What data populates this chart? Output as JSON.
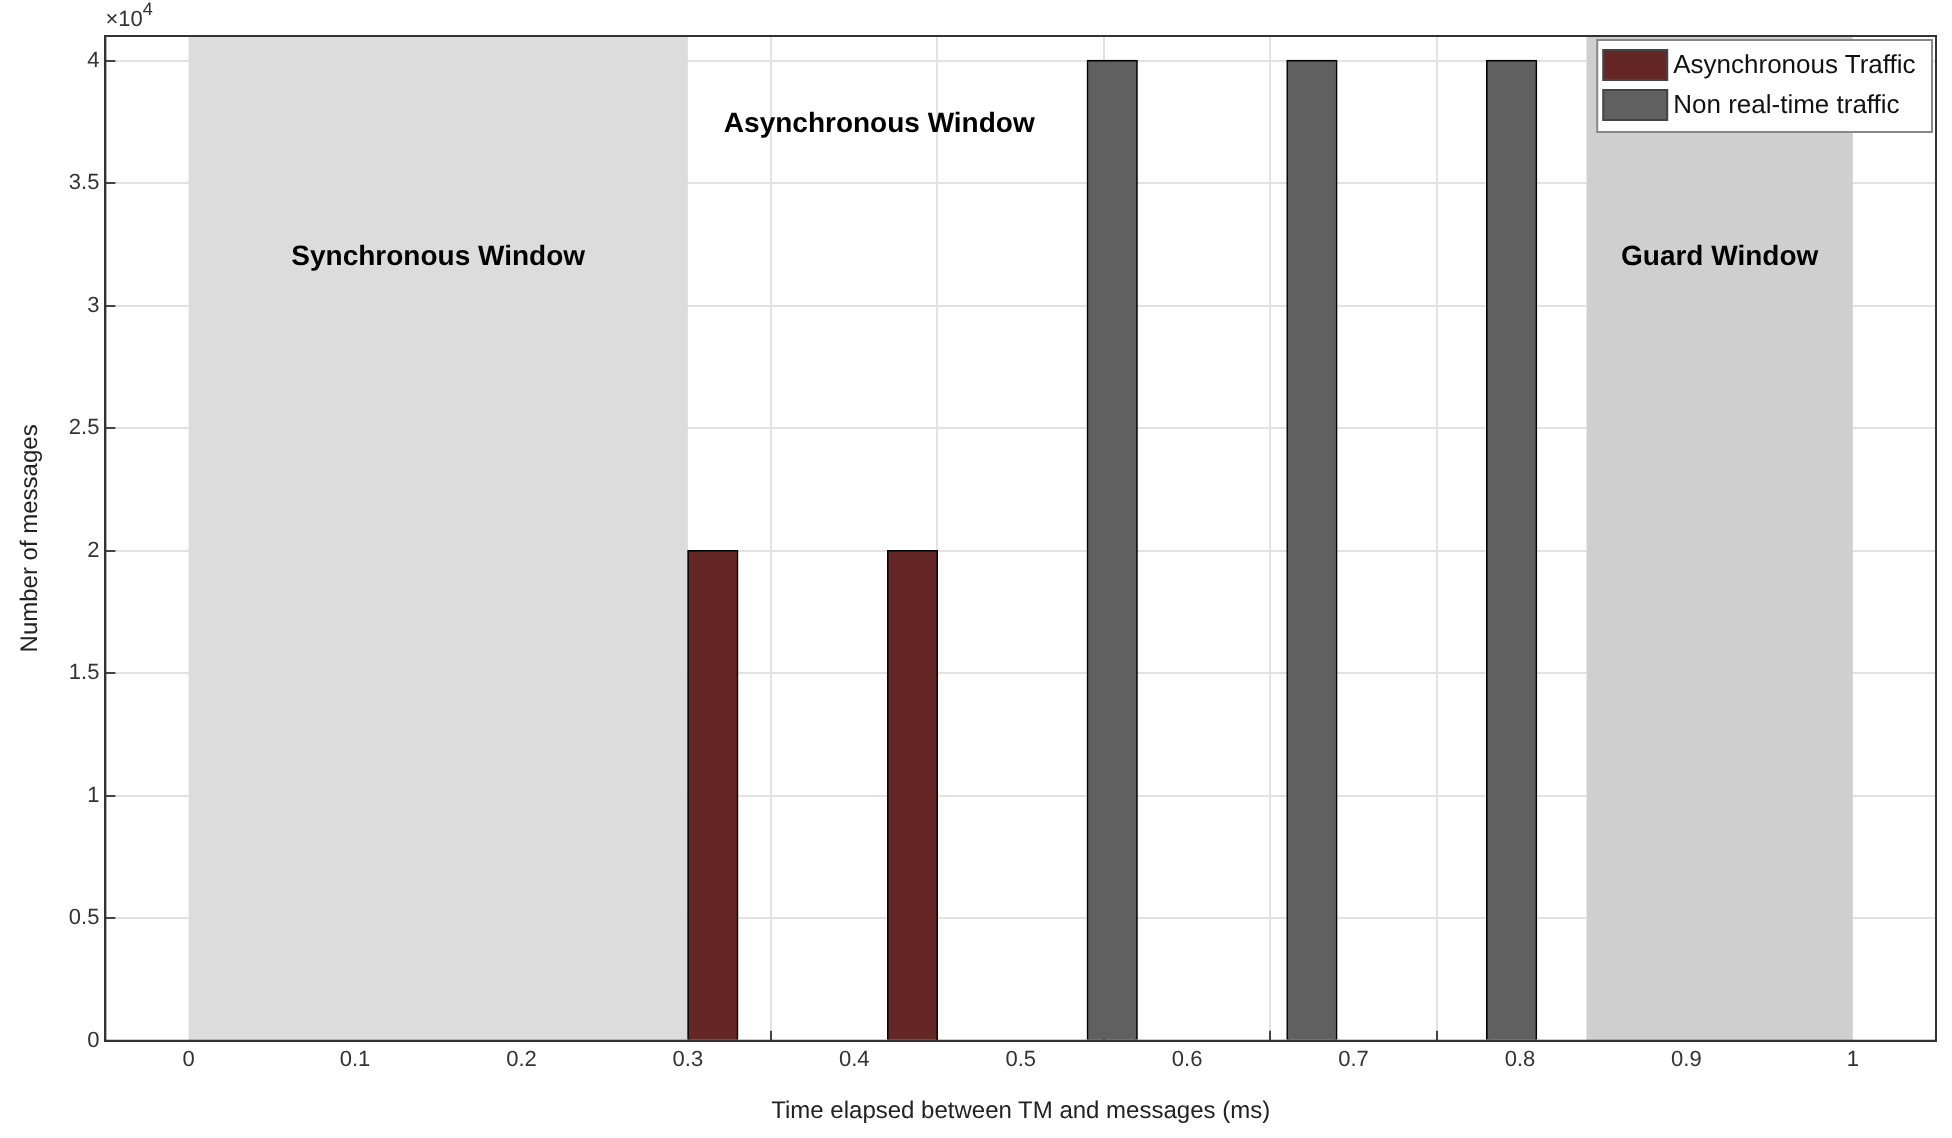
{
  "chart_data": {
    "type": "bar",
    "xlabel": "Time elapsed between TM and messages (ms)",
    "ylabel": "Number of messages",
    "series": [
      {
        "name": "Asynchronous Traffic",
        "color": "#652626",
        "x": [
          0.315,
          0.435
        ],
        "values": [
          2,
          2
        ]
      },
      {
        "name": "Non real-time traffic",
        "color": "#606060",
        "x": [
          0.555,
          0.675,
          0.795
        ],
        "values": [
          4,
          4,
          4
        ]
      }
    ],
    "xlim": [
      0,
      1
    ],
    "xticks": [
      0,
      0.1,
      0.2,
      0.3,
      0.4,
      0.5,
      0.6,
      0.7,
      0.8,
      0.9,
      1
    ],
    "ylim": [
      0,
      4.1
    ],
    "yticks": [
      0,
      0.5,
      1,
      1.5,
      2,
      2.5,
      3,
      3.5,
      4
    ],
    "bands": [
      {
        "axis": "x",
        "from": 0,
        "to": 0.3,
        "color": "#dcdcdc",
        "label": "Synchronous Window"
      },
      {
        "axis": "x",
        "from": 0.84,
        "to": 1,
        "color": "#cfcfcf",
        "label": "Guard Window"
      }
    ],
    "annotations": [
      "×10$^{4}$",
      "Asynchronous Window"
    ],
    "grid": true,
    "legend": "top right"
  }
}
